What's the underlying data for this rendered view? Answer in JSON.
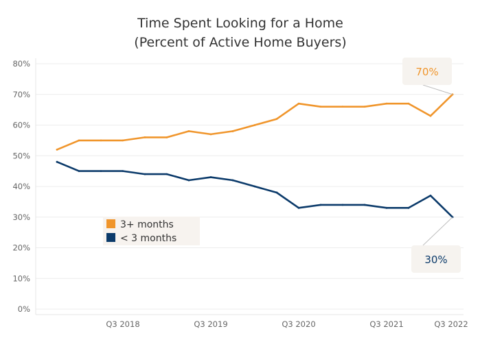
{
  "chart_data": {
    "type": "line",
    "title": "Time Spent Looking for a Home",
    "subtitle": "(Percent of Active Home Buyers)",
    "x_tick_labels": [
      "Q3 2018",
      "Q3 2019",
      "Q3 2020",
      "Q3 2021",
      "Q3 2022"
    ],
    "x_tick_index": [
      3,
      7,
      11,
      15,
      19
    ],
    "y_ticks": [
      0,
      10,
      20,
      30,
      40,
      50,
      60,
      70,
      80
    ],
    "y_tick_labels": [
      "0%",
      "10%",
      "20%",
      "30%",
      "40%",
      "50%",
      "60%",
      "70%",
      "80%"
    ],
    "ylim": [
      0,
      80
    ],
    "grid": "horizontal",
    "legend": "center-left",
    "series": [
      {
        "name": "3+ months",
        "color": "#F0952B",
        "values": [
          52,
          55,
          55,
          55,
          56,
          56,
          58,
          57,
          58,
          60,
          62,
          67,
          66,
          66,
          66,
          67,
          67,
          63,
          70
        ]
      },
      {
        "name": "< 3 months",
        "color": "#0B3A6A",
        "values": [
          48,
          45,
          45,
          45,
          44,
          44,
          42,
          43,
          42,
          40,
          38,
          33,
          34,
          34,
          34,
          33,
          33,
          37,
          30
        ]
      }
    ],
    "annotations": [
      {
        "series": 0,
        "text": "70%",
        "color": "#F0952B"
      },
      {
        "series": 1,
        "text": "30%",
        "color": "#0B3A6A"
      }
    ]
  }
}
